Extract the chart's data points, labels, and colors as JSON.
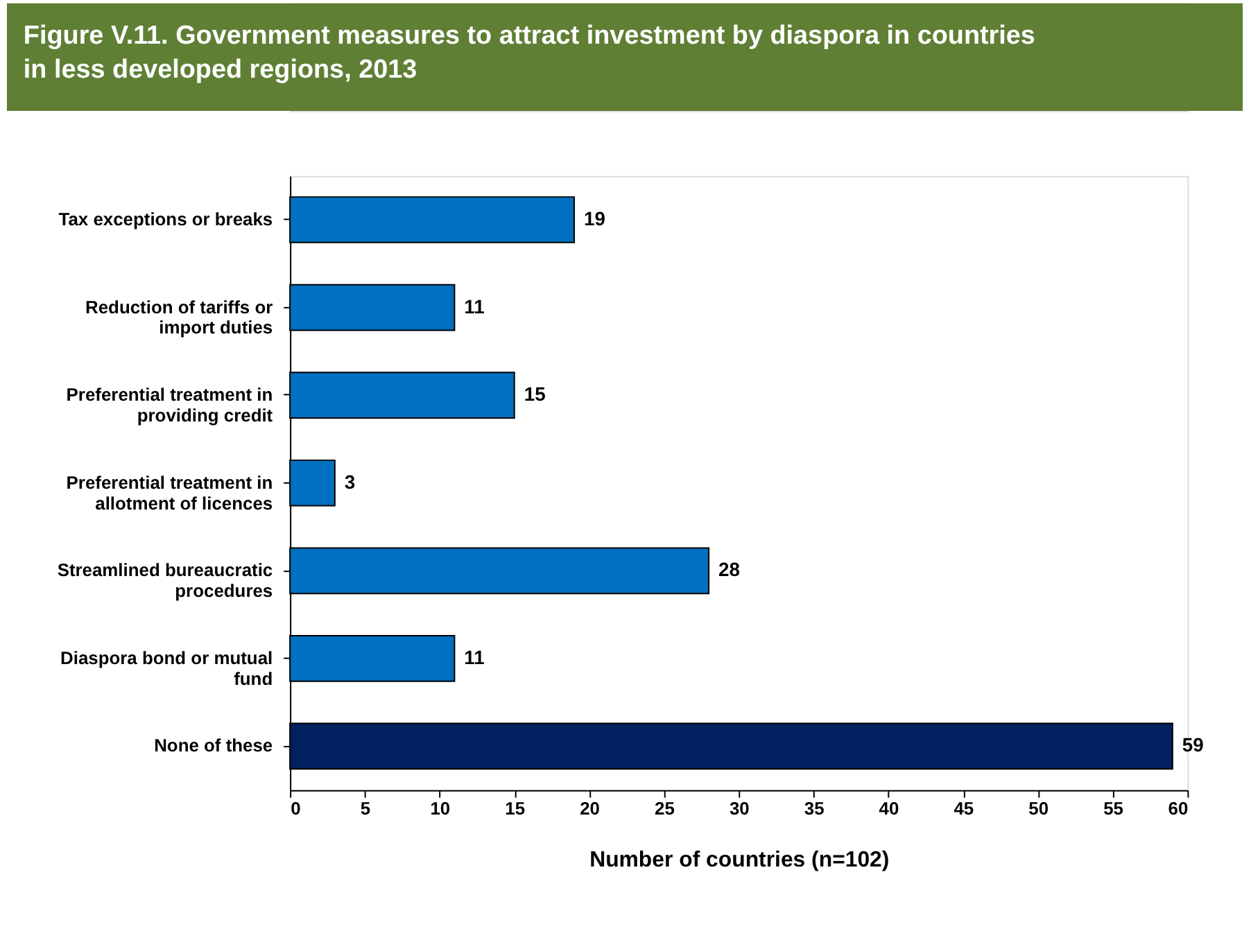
{
  "chart_data": {
    "type": "bar",
    "orientation": "horizontal",
    "title": "Figure V.11. Government measures to attract investment by diaspora in countries in less developed regions, 2013",
    "categories": [
      "Tax exceptions or breaks",
      "Reduction of tariffs or import duties",
      "Preferential treatment in providing credit",
      "Preferential treatment in allotment of licences",
      "Streamlined bureaucratic procedures",
      "Diaspora bond or mutual fund",
      "None of these"
    ],
    "values": [
      19,
      11,
      15,
      3,
      28,
      11,
      59
    ],
    "colors": [
      "#0070c0",
      "#0070c0",
      "#0070c0",
      "#0070c0",
      "#0070c0",
      "#0070c0",
      "#002060"
    ],
    "xlim": [
      0,
      60
    ],
    "xticks": [
      0,
      5,
      10,
      15,
      20,
      25,
      30,
      35,
      40,
      45,
      50,
      55,
      60
    ],
    "xlabel": "Number of countries (n=102)",
    "data_labels": true,
    "grid": false,
    "legend": false
  }
}
